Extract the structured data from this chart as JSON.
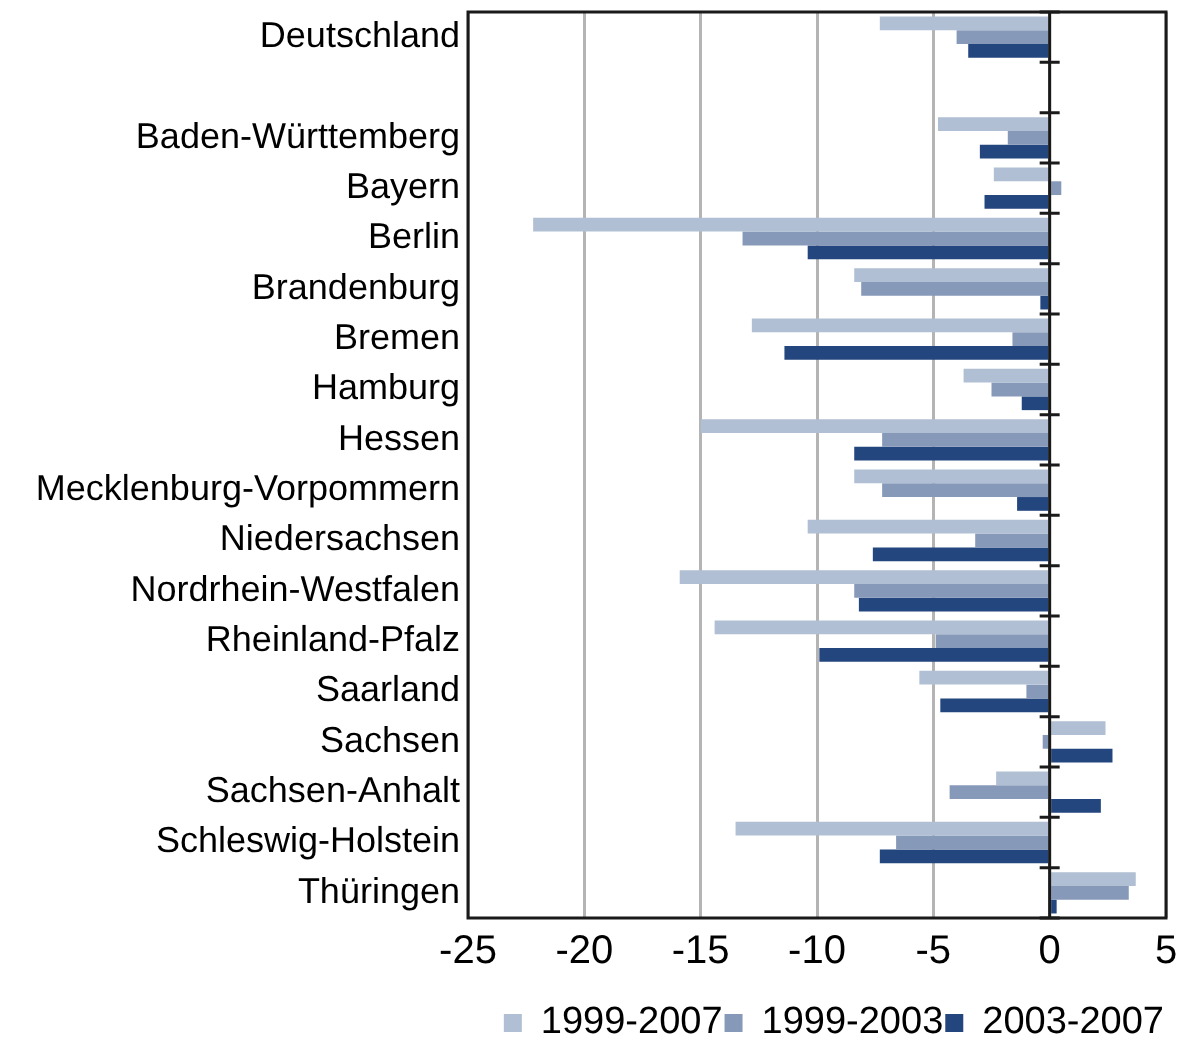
{
  "chart_data": {
    "type": "bar",
    "orientation": "horizontal",
    "categories": [
      "Deutschland",
      null,
      "Baden-Württemberg",
      "Bayern",
      "Berlin",
      "Brandenburg",
      "Bremen",
      "Hamburg",
      "Hessen",
      "Mecklenburg-Vorpommern",
      "Niedersachsen",
      "Nordrhein-Westfalen",
      "Rheinland-Pfalz",
      "Saarland",
      "Sachsen",
      "Sachsen-Anhalt",
      "Schleswig-Holstein",
      "Thüringen"
    ],
    "series": [
      {
        "name": "1999-2007",
        "color": "#b0bfd3",
        "values": [
          -7.3,
          null,
          -4.8,
          -2.4,
          -22.2,
          -8.4,
          -12.8,
          -3.7,
          -15.0,
          -8.4,
          -10.4,
          -15.9,
          -14.4,
          -5.6,
          2.4,
          -2.3,
          -13.5,
          3.7
        ]
      },
      {
        "name": "1999-2003",
        "color": "#8799b8",
        "values": [
          -4.0,
          null,
          -1.8,
          0.5,
          -13.2,
          -8.1,
          -1.6,
          -2.5,
          -7.2,
          -7.2,
          -3.2,
          -8.4,
          -4.9,
          -1.0,
          -0.3,
          -4.3,
          -6.6,
          3.4
        ]
      },
      {
        "name": "2003-2007",
        "color": "#23467e",
        "values": [
          -3.5,
          null,
          -3.0,
          -2.8,
          -10.4,
          -0.4,
          -11.4,
          -1.2,
          -8.4,
          -1.4,
          -7.6,
          -8.2,
          -9.9,
          -4.7,
          2.7,
          2.2,
          -7.3,
          0.3
        ]
      }
    ],
    "xlim": [
      -25,
      5
    ],
    "xticks": [
      -25,
      -20,
      -15,
      -10,
      -5,
      0,
      5
    ],
    "grid": "x",
    "legend": "bottom"
  }
}
